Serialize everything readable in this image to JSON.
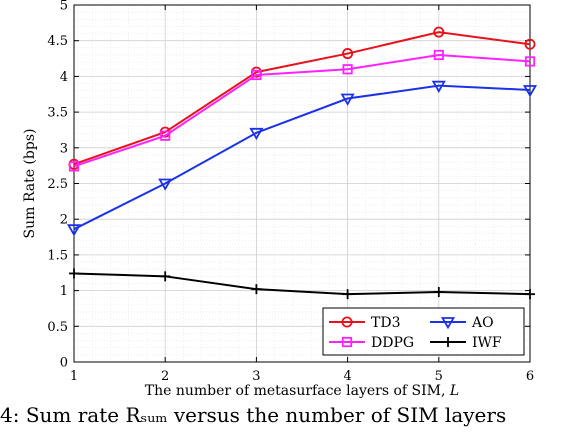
{
  "chart_data": {
    "type": "line",
    "title": "",
    "xlabel": "The number of metasurface layers of SIM,",
    "xlabel_symbol": "L",
    "ylabel": "Sum Rate (bps)",
    "x": [
      1,
      2,
      3,
      4,
      5,
      6
    ],
    "xlim": [
      1,
      6
    ],
    "ylim": [
      0,
      5
    ],
    "xticks": [
      "1",
      "2",
      "3",
      "4",
      "5",
      "6"
    ],
    "yticks": [
      "0",
      "0.5",
      "1",
      "1.5",
      "2",
      "2.5",
      "3",
      "3.5",
      "4",
      "4.5",
      "5"
    ],
    "grid": true,
    "minor_grid": true,
    "legend_position": "bottom-right",
    "series": [
      {
        "name": "TD3",
        "color": "#e8121b",
        "marker": "circle",
        "values": [
          2.77,
          3.22,
          4.06,
          4.32,
          4.62,
          4.45
        ]
      },
      {
        "name": "DDPG",
        "color": "#ff22ff",
        "marker": "square",
        "values": [
          2.74,
          3.17,
          4.02,
          4.1,
          4.3,
          4.21
        ]
      },
      {
        "name": "AO",
        "color": "#1b32e6",
        "marker": "triangle-down",
        "values": [
          1.86,
          2.5,
          3.21,
          3.69,
          3.87,
          3.81
        ]
      },
      {
        "name": "IWF",
        "color": "#000000",
        "marker": "plus",
        "values": [
          1.24,
          1.2,
          1.02,
          0.95,
          0.98,
          0.95
        ]
      }
    ]
  },
  "caption": "4: Sum rate Rₛᵤₘ versus the number of SIM layers"
}
